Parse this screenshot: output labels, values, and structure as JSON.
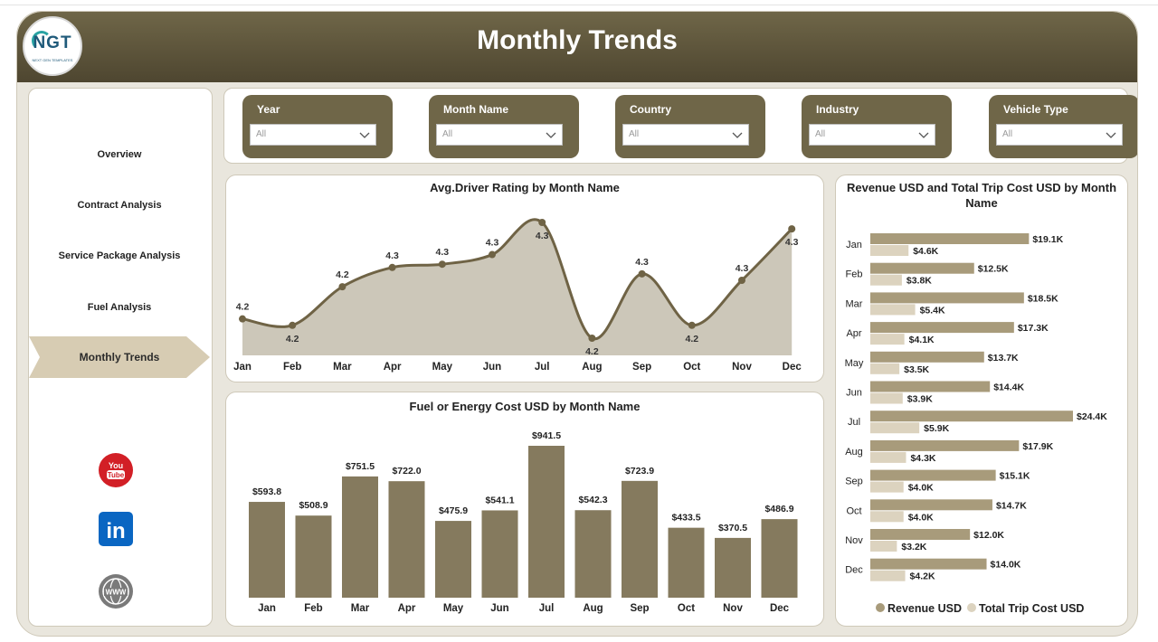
{
  "header": {
    "title": "Monthly Trends",
    "logo_text": "NGT",
    "logo_sub": "NEXT GEN TEMPLATES"
  },
  "sidebar": {
    "items": [
      {
        "label": "Overview",
        "active": false
      },
      {
        "label": "Contract Analysis",
        "active": false
      },
      {
        "label": "Service Package Analysis",
        "active": false
      },
      {
        "label": "Fuel Analysis",
        "active": false
      },
      {
        "label": "Monthly Trends",
        "active": true
      }
    ],
    "social": [
      {
        "icon": "youtube-icon",
        "label": "You Tube",
        "color": "#d21f26"
      },
      {
        "icon": "linkedin-icon",
        "label": "in",
        "color": "#0a66c2"
      },
      {
        "icon": "globe-icon",
        "label": "WWW",
        "color": "#7a7a7a"
      }
    ]
  },
  "filters": [
    {
      "label": "Year",
      "value": "All"
    },
    {
      "label": "Month Name",
      "value": "All"
    },
    {
      "label": "Country",
      "value": "All"
    },
    {
      "label": "Industry",
      "value": "All"
    },
    {
      "label": "Vehicle Type",
      "value": "All"
    }
  ],
  "colors": {
    "accent": "#6f6648",
    "bar": "#857a5e",
    "revenue": "#a89b7b",
    "cost": "#dcd3bf",
    "area": "#c9c4b5",
    "line": "#6f6345"
  },
  "chart_data": [
    {
      "type": "area",
      "title": "Avg.Driver Rating by Month Name",
      "categories": [
        "Jan",
        "Feb",
        "Mar",
        "Apr",
        "May",
        "Jun",
        "Jul",
        "Aug",
        "Sep",
        "Oct",
        "Nov",
        "Dec"
      ],
      "values": [
        4.19,
        4.18,
        4.24,
        4.27,
        4.275,
        4.29,
        4.34,
        4.16,
        4.26,
        4.18,
        4.25,
        4.33
      ],
      "labels": [
        "4.2",
        "4.2",
        "4.2",
        "4.3",
        "4.3",
        "4.3",
        "4.3",
        "4.2",
        "4.3",
        "4.2",
        "4.3",
        "4.3"
      ]
    },
    {
      "type": "bar",
      "title": "Fuel or Energy Cost USD by Month Name",
      "categories": [
        "Jan",
        "Feb",
        "Mar",
        "Apr",
        "May",
        "Jun",
        "Jul",
        "Aug",
        "Sep",
        "Oct",
        "Nov",
        "Dec"
      ],
      "values": [
        593.8,
        508.9,
        751.5,
        722.0,
        475.9,
        541.1,
        941.5,
        542.3,
        723.9,
        433.5,
        370.5,
        486.9
      ],
      "labels": [
        "$593.8",
        "$508.9",
        "$751.5",
        "$722.0",
        "$475.9",
        "$541.1",
        "$941.5",
        "$542.3",
        "$723.9",
        "$433.5",
        "$370.5",
        "$486.9"
      ]
    },
    {
      "type": "bar",
      "orientation": "horizontal",
      "title": "Revenue USD and Total Trip Cost USD by Month Name",
      "categories": [
        "Jan",
        "Feb",
        "Mar",
        "Apr",
        "May",
        "Jun",
        "Jul",
        "Aug",
        "Sep",
        "Oct",
        "Nov",
        "Dec"
      ],
      "legend_position": "bottom",
      "series": [
        {
          "name": "Revenue USD",
          "values": [
            19.1,
            12.5,
            18.5,
            17.3,
            13.7,
            14.4,
            24.4,
            17.9,
            15.1,
            14.7,
            12.0,
            14.0
          ],
          "labels": [
            "$19.1K",
            "$12.5K",
            "$18.5K",
            "$17.3K",
            "$13.7K",
            "$14.4K",
            "$24.4K",
            "$17.9K",
            "$15.1K",
            "$14.7K",
            "$12.0K",
            "$14.0K"
          ]
        },
        {
          "name": "Total Trip Cost USD",
          "values": [
            4.6,
            3.8,
            5.4,
            4.1,
            3.5,
            3.9,
            5.9,
            4.3,
            4.0,
            4.0,
            3.2,
            4.2
          ],
          "labels": [
            "$4.6K",
            "$3.8K",
            "$5.4K",
            "$4.1K",
            "$3.5K",
            "$3.9K",
            "$5.9K",
            "$4.3K",
            "$4.0K",
            "$4.0K",
            "$3.2K",
            "$4.2K"
          ]
        }
      ]
    }
  ]
}
